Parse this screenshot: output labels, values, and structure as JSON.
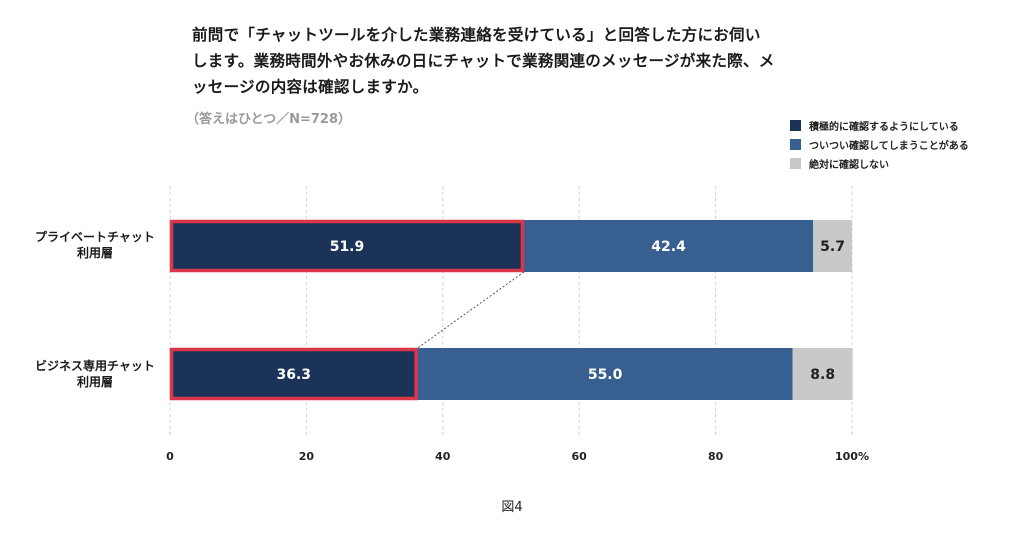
{
  "title_lines": [
    "前問で「チャットツールを介した業務連絡を受けている」と回答した方にお伺い",
    "します。業務時間外やお休みの日にチャットで業務関連のメッセージが来た際、メ",
    "ッセージの内容は確認しますか。"
  ],
  "subtitle": "（答えはひとつ／N=728）",
  "caption": "図4",
  "category_label_lines": [
    [
      "プライベートチャット",
      "利用層"
    ],
    [
      "ビジネス専用チャット",
      "利用層"
    ]
  ],
  "chart_data": {
    "type": "bar",
    "orientation": "horizontal",
    "stacked": true,
    "categories": [
      "プライベートチャット利用層",
      "ビジネス専用チャット利用層"
    ],
    "series": [
      {
        "name": "積極的に確認するようにしている",
        "values": [
          51.9,
          36.3
        ],
        "color": "#1c3358",
        "label_color": "#ffffff"
      },
      {
        "name": "ついつい確認してしまうことがある",
        "values": [
          42.4,
          55.0
        ],
        "color": "#375f90",
        "label_color": "#ffffff"
      },
      {
        "name": "絶対に確認しない",
        "values": [
          5.7,
          8.8
        ],
        "color": "#c9c9c9",
        "label_color": "#222222"
      }
    ],
    "xlim": [
      0,
      100
    ],
    "xticks": [
      0,
      20,
      40,
      60,
      80,
      100
    ],
    "xtick_labels": [
      "0",
      "20",
      "40",
      "60",
      "80",
      "100%"
    ],
    "grid": true,
    "grid_style": "dashed",
    "legend_position": "top-right",
    "highlight_series": "積極的に確認するようにしている",
    "highlight_color": "#d9364a"
  }
}
